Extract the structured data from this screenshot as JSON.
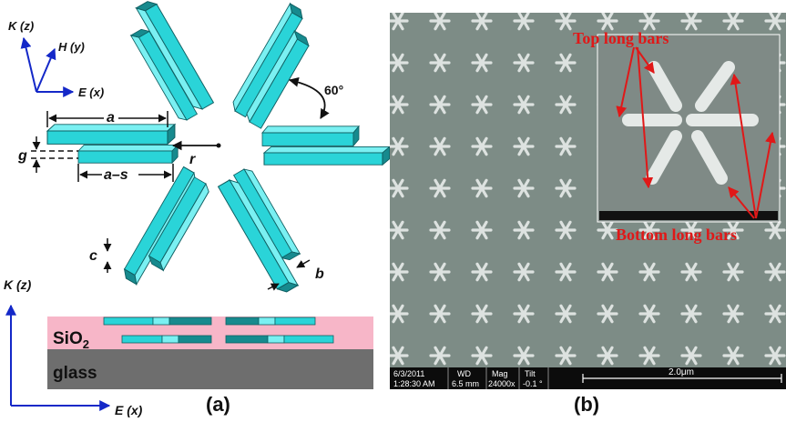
{
  "panel_a": {
    "caption": "(a)",
    "axes_top": {
      "k": "K (z)",
      "h": "H (y)",
      "e": "E (x)"
    },
    "dimensions": {
      "a": "a",
      "a_minus_s": "a–s",
      "g": "g",
      "r": "r",
      "c": "c",
      "b": "b",
      "angle": "60°"
    },
    "cross_section": {
      "k": "K (z)",
      "e": "E (x)",
      "sio2_main": "SiO",
      "sio2_sub": "2",
      "glass": "glass"
    },
    "colors": {
      "bar": "#2ad4d8",
      "bar_dark": "#178a8e",
      "sio2": "#f7b6c8",
      "glass": "#6e6e6e",
      "axis": "#1428c8"
    }
  },
  "panel_b": {
    "caption": "(b)",
    "inset_top_label": "Top long bars",
    "inset_bottom_label": "Bottom long bars",
    "info_bar": {
      "date": "6/3/2011",
      "time": "1:28:30 AM",
      "wd_label": "WD",
      "wd_value": "6.5 mm",
      "mag_label": "Mag",
      "mag_value": "24000x",
      "tilt_label": "Tilt",
      "tilt_value": "-0.1 °",
      "scale": "2.0μm"
    },
    "colors": {
      "sem_bg": "#7d8c86",
      "pattern": "#e8ecea",
      "annot": "#e01818"
    }
  }
}
